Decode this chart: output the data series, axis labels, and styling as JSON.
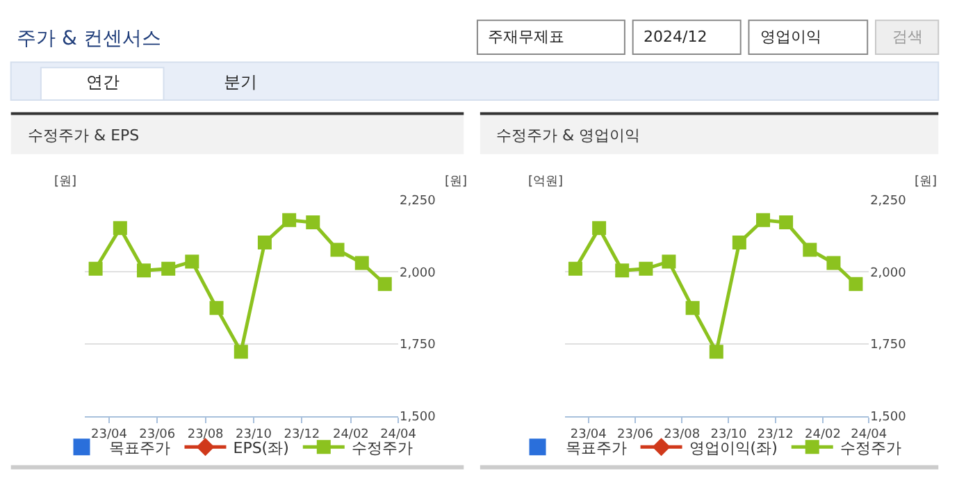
{
  "chart_data": [
    {
      "type": "other",
      "title": "주가 & 컨센서스",
      "annotations": [
        "주재무제표",
        "2024/12",
        "영업이익",
        "검색",
        "연간",
        "분기"
      ]
    },
    {
      "type": "line",
      "title": "수정주가 & EPS",
      "ylabel": "[원]",
      "y2label": "[원]",
      "x": [
        "2023-03-15",
        "2023-04-15",
        "2023-05-15",
        "2023-06-15",
        "2023-07-15",
        "2023-08-15",
        "2023-09-15",
        "2023-10-15",
        "2023-11-15",
        "2023-12-15",
        "2024-01-15",
        "2024-02-15",
        "2024-03-15"
      ],
      "xlim": [
        "2023-03-01",
        "2024-04-01"
      ],
      "xticks": [
        {
          "value": "2023-04-01",
          "label": "23/04"
        },
        {
          "value": "2023-06-01",
          "label": "23/06"
        },
        {
          "value": "2023-08-01",
          "label": "23/08"
        },
        {
          "value": "2023-10-01",
          "label": "23/10"
        },
        {
          "value": "2023-12-01",
          "label": "23/12"
        },
        {
          "value": "2024-02-01",
          "label": "24/02"
        },
        {
          "value": "2024-04-01",
          "label": "24/04"
        }
      ],
      "y2lim": [
        1500,
        2250
      ],
      "y2ticks": [
        {
          "value": 1500,
          "label": "1,500"
        },
        {
          "value": 1750,
          "label": "1,750"
        },
        {
          "value": 2000,
          "label": "2,000"
        },
        {
          "value": 2250,
          "label": "2,250"
        }
      ],
      "grid": "y",
      "legend": "bottom",
      "series": [
        {
          "name": "목표주가",
          "type": "scatter",
          "marker": "square",
          "color": "#2a6fdb",
          "axis": "y",
          "values": [
            null,
            null,
            null,
            null,
            null,
            null,
            null,
            null,
            null,
            null,
            null,
            null,
            null
          ]
        },
        {
          "name": "EPS(좌)",
          "type": "line",
          "marker": "diamond",
          "color": "#d0391b",
          "axis": "y",
          "values": [
            null,
            null,
            null,
            null,
            null,
            null,
            null,
            null,
            null,
            null,
            null,
            null,
            null
          ]
        },
        {
          "name": "수정주가",
          "type": "line",
          "marker": "square",
          "color": "#8cc21f",
          "axis": "y2",
          "values": [
            2011,
            2152,
            2005,
            2011,
            2036,
            1875,
            1723,
            2102,
            2180,
            2172,
            2077,
            2031,
            1958
          ]
        }
      ]
    },
    {
      "type": "line",
      "title": "수정주가 & 영업이익",
      "ylabel": "[억원]",
      "y2label": "[원]",
      "x": [
        "2023-03-15",
        "2023-04-15",
        "2023-05-15",
        "2023-06-15",
        "2023-07-15",
        "2023-08-15",
        "2023-09-15",
        "2023-10-15",
        "2023-11-15",
        "2023-12-15",
        "2024-01-15",
        "2024-02-15",
        "2024-03-15"
      ],
      "xlim": [
        "2023-03-01",
        "2024-04-01"
      ],
      "xticks": [
        {
          "value": "2023-04-01",
          "label": "23/04"
        },
        {
          "value": "2023-06-01",
          "label": "23/06"
        },
        {
          "value": "2023-08-01",
          "label": "23/08"
        },
        {
          "value": "2023-10-01",
          "label": "23/10"
        },
        {
          "value": "2023-12-01",
          "label": "23/12"
        },
        {
          "value": "2024-02-01",
          "label": "24/02"
        },
        {
          "value": "2024-04-01",
          "label": "24/04"
        }
      ],
      "y2lim": [
        1500,
        2250
      ],
      "y2ticks": [
        {
          "value": 1500,
          "label": "1,500"
        },
        {
          "value": 1750,
          "label": "1,750"
        },
        {
          "value": 2000,
          "label": "2,000"
        },
        {
          "value": 2250,
          "label": "2,250"
        }
      ],
      "grid": "y",
      "legend": "bottom",
      "series": [
        {
          "name": "목표주가",
          "type": "scatter",
          "marker": "square",
          "color": "#2a6fdb",
          "axis": "y",
          "values": [
            null,
            null,
            null,
            null,
            null,
            null,
            null,
            null,
            null,
            null,
            null,
            null,
            null
          ]
        },
        {
          "name": "영업이익(좌)",
          "type": "line",
          "marker": "diamond",
          "color": "#d0391b",
          "axis": "y",
          "values": [
            null,
            null,
            null,
            null,
            null,
            null,
            null,
            null,
            null,
            null,
            null,
            null,
            null
          ]
        },
        {
          "name": "수정주가",
          "type": "line",
          "marker": "square",
          "color": "#8cc21f",
          "axis": "y2",
          "values": [
            2011,
            2152,
            2005,
            2011,
            2036,
            1875,
            1723,
            2102,
            2180,
            2172,
            2077,
            2031,
            1958
          ]
        }
      ]
    }
  ]
}
